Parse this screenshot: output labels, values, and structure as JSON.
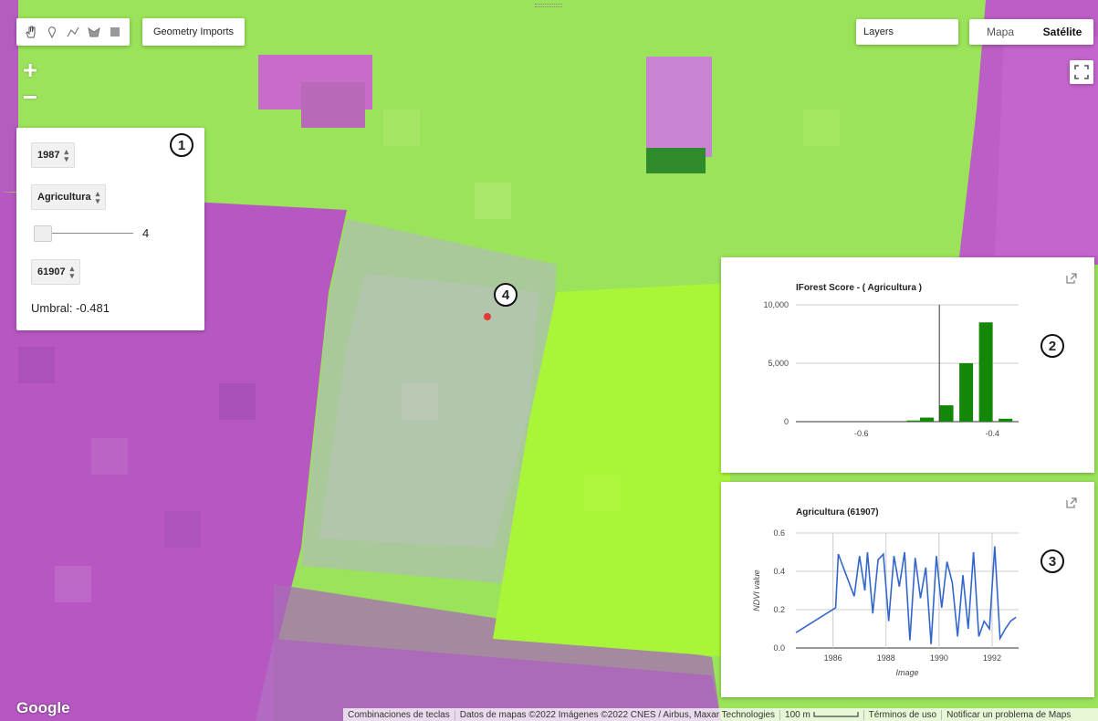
{
  "toolbar": {
    "geometry_imports": "Geometry Imports",
    "tools": [
      "hand-icon",
      "marker-icon",
      "line-icon",
      "polygon-icon",
      "rectangle-icon"
    ]
  },
  "map_controls": {
    "layers": "Layers",
    "map_label": "Mapa",
    "satellite_label": "Satélite",
    "zoom_in": "+",
    "zoom_out": "−"
  },
  "panel": {
    "year": "1987",
    "class": "Agricultura",
    "slider_value": "4",
    "slider_fraction": 0.03,
    "id": "61907",
    "threshold": "Umbral: -0.481",
    "badge": "1"
  },
  "map_marker": {
    "badge": "4",
    "color": "#e53935"
  },
  "chart_hist": {
    "badge": "2",
    "chart_data": {
      "type": "bar",
      "title": "IForest Score - ( Agricultura )",
      "xlabel": "",
      "ylabel": "",
      "ylim": [
        0,
        10000
      ],
      "yticks": [
        "10,000",
        "5,000",
        "0"
      ],
      "xticks": [
        "-0.6",
        "-0.4"
      ],
      "x": [
        -0.52,
        -0.5,
        -0.47,
        -0.44,
        -0.41,
        -0.38
      ],
      "values": [
        100,
        350,
        1400,
        5000,
        8500,
        250
      ],
      "threshold_x": -0.481,
      "color": "#138808"
    }
  },
  "chart_ts": {
    "badge": "3",
    "chart_data": {
      "type": "line",
      "title": "Agricultura (61907)",
      "xlabel": "Image",
      "ylabel": "NDVI value",
      "ylim": [
        0,
        0.6
      ],
      "yticks": [
        "0.6",
        "0.4",
        "0.2",
        "0.0"
      ],
      "xticks": [
        "1986",
        "1988",
        "1990",
        "1992"
      ],
      "color": "#3366cc",
      "x": [
        1984.6,
        1986.1,
        1986.2,
        1986.5,
        1986.8,
        1987.0,
        1987.2,
        1987.3,
        1987.5,
        1987.7,
        1987.9,
        1988.1,
        1988.3,
        1988.5,
        1988.7,
        1988.9,
        1989.1,
        1989.3,
        1989.5,
        1989.7,
        1989.9,
        1990.1,
        1990.3,
        1990.5,
        1990.7,
        1990.9,
        1991.1,
        1991.3,
        1991.5,
        1991.7,
        1991.9,
        1992.1,
        1992.3,
        1992.5,
        1992.7,
        1992.9
      ],
      "values": [
        0.08,
        0.21,
        0.49,
        0.38,
        0.27,
        0.48,
        0.3,
        0.5,
        0.18,
        0.46,
        0.49,
        0.14,
        0.48,
        0.32,
        0.5,
        0.04,
        0.47,
        0.26,
        0.42,
        0.02,
        0.48,
        0.21,
        0.45,
        0.34,
        0.06,
        0.38,
        0.1,
        0.5,
        0.06,
        0.14,
        0.1,
        0.53,
        0.05,
        0.1,
        0.14,
        0.16
      ]
    }
  },
  "footer": {
    "shortcuts": "Combinaciones de teclas",
    "attribution": "Datos de mapas ©2022 Imágenes ©2022 CNES / Airbus, Maxar Technologies",
    "scale": "100 m",
    "terms": "Términos de uso",
    "report": "Notificar un problema de Maps"
  },
  "logo": "Google"
}
